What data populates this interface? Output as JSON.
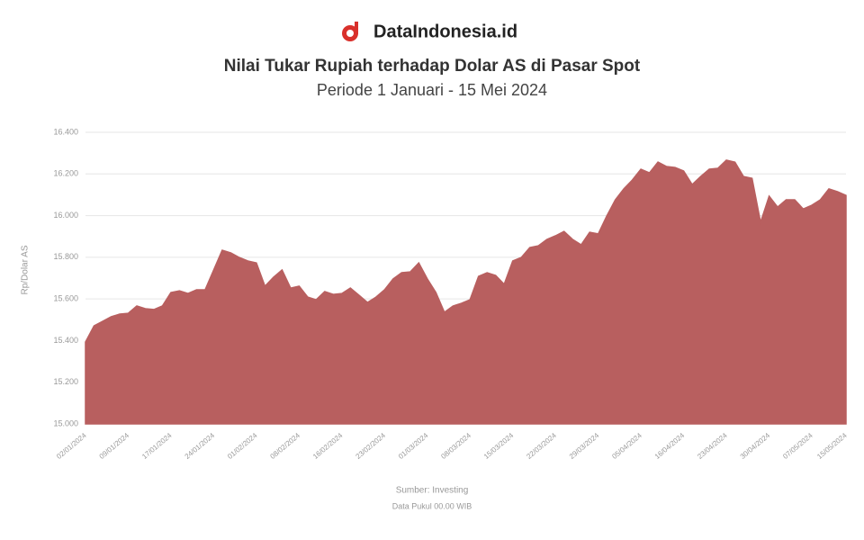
{
  "brand": "DataIndonesia.id",
  "chart_data": {
    "type": "area",
    "title": "Nilai Tukar Rupiah terhadap Dolar AS di Pasar Spot",
    "subtitle": "Periode 1 Januari - 15 Mei 2024",
    "y_label": "Rp/Dolar AS",
    "source": "Sumber: Investing",
    "note": "Data Pukul 00.00 WIB",
    "color": "#b85f5f",
    "grid": true,
    "categories": [
      "02/01/2024",
      null,
      null,
      null,
      null,
      "09/01/2024",
      null,
      null,
      null,
      null,
      "17/01/2024",
      null,
      null,
      null,
      null,
      "24/01/2024",
      null,
      null,
      null,
      null,
      "01/02/2024",
      null,
      null,
      null,
      null,
      "08/02/2024",
      null,
      null,
      null,
      null,
      "16/02/2024",
      null,
      null,
      null,
      null,
      "23/02/2024",
      null,
      null,
      null,
      null,
      "01/03/2024",
      null,
      null,
      null,
      null,
      "08/03/2024",
      null,
      null,
      null,
      null,
      "15/03/2024",
      null,
      null,
      null,
      null,
      "22/03/2024",
      null,
      null,
      null,
      null,
      "29/03/2024",
      null,
      null,
      null,
      null,
      "05/04/2024",
      null,
      null,
      null,
      null,
      "16/04/2024",
      null,
      null,
      null,
      null,
      "23/04/2024",
      null,
      null,
      null,
      null,
      "30/04/2024",
      null,
      null,
      null,
      null,
      "07/05/2024",
      null,
      null,
      null,
      "15/05/2024"
    ],
    "values": [
      15393,
      15471,
      15492,
      15514,
      15527,
      15531,
      15566,
      15553,
      15549,
      15566,
      15631,
      15639,
      15626,
      15644,
      15644,
      15739,
      15834,
      15821,
      15799,
      15782,
      15773,
      15661,
      15704,
      15739,
      15652,
      15661,
      15609,
      15596,
      15635,
      15622,
      15626,
      15652,
      15618,
      15583,
      15609,
      15644,
      15696,
      15726,
      15730,
      15773,
      15696,
      15631,
      15536,
      15566,
      15579,
      15596,
      15708,
      15726,
      15713,
      15670,
      15782,
      15799,
      15847,
      15855,
      15886,
      15903,
      15924,
      15886,
      15860,
      15920,
      15912,
      15998,
      16076,
      16128,
      16171,
      16223,
      16205,
      16257,
      16236,
      16231,
      16214,
      16149,
      16188,
      16223,
      16227,
      16266,
      16257,
      16188,
      16179,
      15968,
      16093,
      16041,
      16076,
      16076,
      16032,
      16050,
      16076,
      16128,
      16115,
      16097
    ],
    "ylim": [
      15000,
      16400
    ],
    "yticks": [
      {
        "value": 15000,
        "label": "15.000"
      },
      {
        "value": 15200,
        "label": "15.200"
      },
      {
        "value": 15400,
        "label": "15.400"
      },
      {
        "value": 15600,
        "label": "15.600"
      },
      {
        "value": 15800,
        "label": "15.800"
      },
      {
        "value": 16000,
        "label": "16.000"
      },
      {
        "value": 16200,
        "label": "16.200"
      },
      {
        "value": 16400,
        "label": "16.400"
      }
    ]
  }
}
